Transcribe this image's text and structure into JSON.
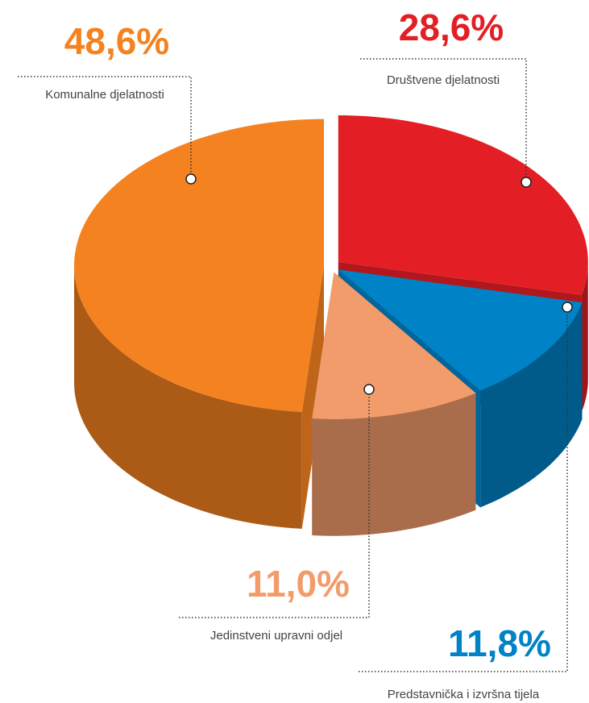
{
  "chart_data": {
    "type": "pie3d",
    "categories": [
      "Komunalne djelatnosti",
      "Društvene djelatnosti",
      "Predstavnička i izvršna tijela",
      "Jedinstveni upravni odjel"
    ],
    "values": [
      48.6,
      28.6,
      11.8,
      11.0
    ],
    "value_labels": [
      "48,6%",
      "28,6%",
      "11,8%",
      "11,0%"
    ],
    "colors": [
      "#f58220",
      "#e31e24",
      "#0082c6",
      "#f39c6b"
    ]
  }
}
